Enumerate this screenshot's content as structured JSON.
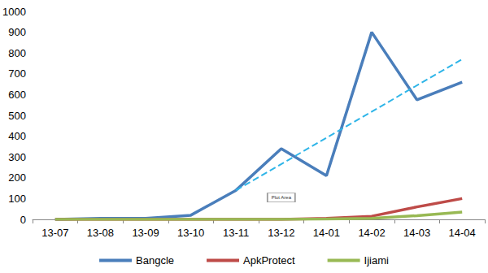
{
  "chart_data": {
    "type": "line",
    "categories": [
      "13-07",
      "13-08",
      "13-09",
      "13-10",
      "13-11",
      "13-12",
      "14-01",
      "14-02",
      "14-03",
      "14-04"
    ],
    "series": [
      {
        "name": "Bangcle",
        "color": "#4a7ebb",
        "values": [
          0,
          5,
          5,
          20,
          140,
          340,
          210,
          900,
          575,
          660
        ]
      },
      {
        "name": "ApkProtect",
        "color": "#be4b48",
        "values": [
          0,
          0,
          0,
          0,
          0,
          0,
          5,
          15,
          60,
          100
        ]
      },
      {
        "name": "Ijiami",
        "color": "#98b954",
        "values": [
          0,
          0,
          0,
          0,
          0,
          0,
          2,
          5,
          18,
          35
        ]
      }
    ],
    "trend_line": {
      "series": "Bangcle",
      "start": {
        "x": "13-11",
        "y": 140
      },
      "end": {
        "x": "14-04",
        "y": 770
      },
      "color": "#2fb5e8",
      "line_style": "dashed"
    },
    "annotations": [
      {
        "text": "Plot Area",
        "x": "13-12",
        "y": 105
      }
    ],
    "ylim": [
      0,
      1000
    ],
    "yticks": [
      0,
      100,
      200,
      300,
      400,
      500,
      600,
      700,
      800,
      900,
      1000
    ],
    "grid": false,
    "legend": "bottom"
  }
}
